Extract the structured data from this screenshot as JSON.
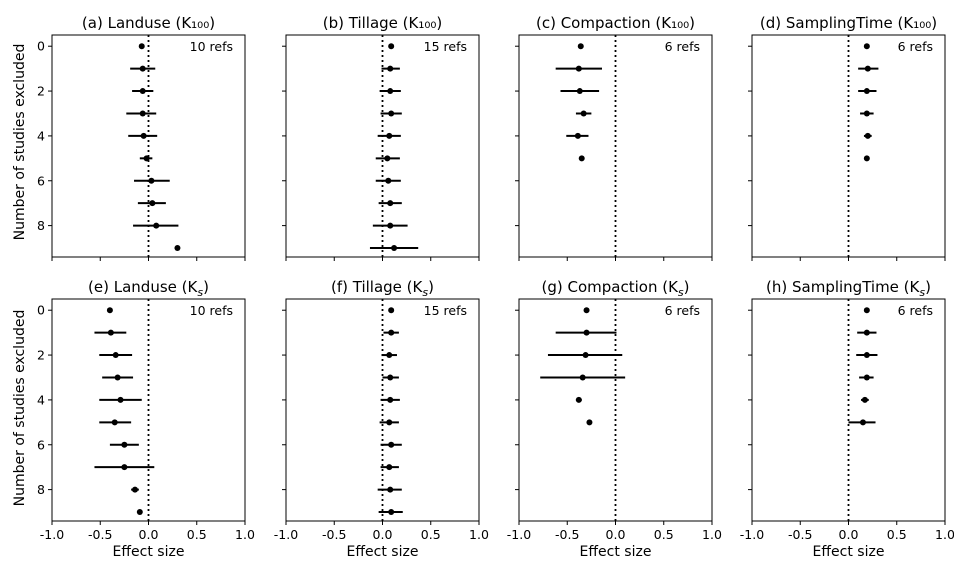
{
  "figure": {
    "ylabel": "Number of studies excluded",
    "xlabel": "Effect size"
  },
  "chart_data": [
    {
      "type": "scatter",
      "title": "(a) Landuse (K₁₀₀)",
      "refs_label": "10 refs",
      "xlim": [
        -1.0,
        1.0
      ],
      "ylim": [
        9.4,
        -0.5
      ],
      "xticks": [
        -1.0,
        -0.5,
        0.0,
        0.5,
        1.0
      ],
      "yticks": [
        0,
        2,
        4,
        6,
        8
      ],
      "reference_line": 0,
      "points": [
        {
          "y": 0,
          "x": -0.07,
          "lo": -0.07,
          "hi": -0.07
        },
        {
          "y": 1,
          "x": -0.06,
          "lo": -0.19,
          "hi": 0.07
        },
        {
          "y": 2,
          "x": -0.06,
          "lo": -0.17,
          "hi": 0.05
        },
        {
          "y": 3,
          "x": -0.06,
          "lo": -0.23,
          "hi": 0.08
        },
        {
          "y": 4,
          "x": -0.05,
          "lo": -0.21,
          "hi": 0.09
        },
        {
          "y": 5,
          "x": -0.02,
          "lo": -0.09,
          "hi": 0.04
        },
        {
          "y": 6,
          "x": 0.03,
          "lo": -0.15,
          "hi": 0.22
        },
        {
          "y": 7,
          "x": 0.04,
          "lo": -0.11,
          "hi": 0.18
        },
        {
          "y": 8,
          "x": 0.08,
          "lo": -0.16,
          "hi": 0.31
        },
        {
          "y": 9,
          "x": 0.3,
          "lo": 0.3,
          "hi": 0.3
        }
      ]
    },
    {
      "type": "scatter",
      "title": "(b) Tillage (K₁₀₀)",
      "refs_label": "15 refs",
      "xlim": [
        -1.0,
        1.0
      ],
      "ylim": [
        9.4,
        -0.5
      ],
      "xticks": [
        -1.0,
        -0.5,
        0.0,
        0.5,
        1.0
      ],
      "yticks": [
        0,
        2,
        4,
        6,
        8
      ],
      "reference_line": 0,
      "points": [
        {
          "y": 0,
          "x": 0.09,
          "lo": 0.09,
          "hi": 0.09
        },
        {
          "y": 1,
          "x": 0.08,
          "lo": -0.01,
          "hi": 0.18
        },
        {
          "y": 2,
          "x": 0.08,
          "lo": -0.03,
          "hi": 0.19
        },
        {
          "y": 3,
          "x": 0.09,
          "lo": -0.02,
          "hi": 0.2
        },
        {
          "y": 4,
          "x": 0.07,
          "lo": -0.05,
          "hi": 0.19
        },
        {
          "y": 5,
          "x": 0.05,
          "lo": -0.07,
          "hi": 0.18
        },
        {
          "y": 6,
          "x": 0.06,
          "lo": -0.07,
          "hi": 0.19
        },
        {
          "y": 7,
          "x": 0.08,
          "lo": -0.04,
          "hi": 0.2
        },
        {
          "y": 8,
          "x": 0.08,
          "lo": -0.1,
          "hi": 0.26
        },
        {
          "y": 9,
          "x": 0.12,
          "lo": -0.13,
          "hi": 0.37
        }
      ]
    },
    {
      "type": "scatter",
      "title": "(c) Compaction (K₁₀₀)",
      "refs_label": "6 refs",
      "xlim": [
        -1.0,
        1.0
      ],
      "ylim": [
        9.4,
        -0.5
      ],
      "xticks": [
        -1.0,
        -0.5,
        0.0,
        0.5,
        1.0
      ],
      "yticks": [
        0,
        2,
        4,
        6,
        8
      ],
      "reference_line": 0,
      "points": [
        {
          "y": 0,
          "x": -0.36,
          "lo": -0.36,
          "hi": -0.36
        },
        {
          "y": 1,
          "x": -0.38,
          "lo": -0.62,
          "hi": -0.14
        },
        {
          "y": 2,
          "x": -0.37,
          "lo": -0.57,
          "hi": -0.17
        },
        {
          "y": 3,
          "x": -0.33,
          "lo": -0.41,
          "hi": -0.25
        },
        {
          "y": 4,
          "x": -0.39,
          "lo": -0.51,
          "hi": -0.28
        },
        {
          "y": 5,
          "x": -0.35,
          "lo": -0.35,
          "hi": -0.35
        }
      ]
    },
    {
      "type": "scatter",
      "title": "(d) SamplingTime (K₁₀₀)",
      "refs_label": "6 refs",
      "xlim": [
        -1.0,
        1.0
      ],
      "ylim": [
        9.4,
        -0.5
      ],
      "xticks": [
        -1.0,
        -0.5,
        0.0,
        0.5,
        1.0
      ],
      "yticks": [
        0,
        2,
        4,
        6,
        8
      ],
      "reference_line": 0,
      "points": [
        {
          "y": 0,
          "x": 0.19,
          "lo": 0.19,
          "hi": 0.19
        },
        {
          "y": 1,
          "x": 0.2,
          "lo": 0.1,
          "hi": 0.31
        },
        {
          "y": 2,
          "x": 0.19,
          "lo": 0.1,
          "hi": 0.29
        },
        {
          "y": 3,
          "x": 0.19,
          "lo": 0.12,
          "hi": 0.26
        },
        {
          "y": 4,
          "x": 0.2,
          "lo": 0.16,
          "hi": 0.24
        },
        {
          "y": 5,
          "x": 0.19,
          "lo": 0.19,
          "hi": 0.19
        }
      ]
    },
    {
      "type": "scatter",
      "title": "(e) Landuse (K",
      "refs_label": "10 refs",
      "xlim": [
        -1.0,
        1.0
      ],
      "ylim": [
        9.4,
        -0.5
      ],
      "xticks": [
        -1.0,
        -0.5,
        0.0,
        0.5,
        1.0
      ],
      "yticks": [
        0,
        2,
        4,
        6,
        8
      ],
      "reference_line": 0,
      "points": [
        {
          "y": 0,
          "x": -0.4,
          "lo": -0.4,
          "hi": -0.4
        },
        {
          "y": 1,
          "x": -0.39,
          "lo": -0.56,
          "hi": -0.23
        },
        {
          "y": 2,
          "x": -0.34,
          "lo": -0.51,
          "hi": -0.17
        },
        {
          "y": 3,
          "x": -0.32,
          "lo": -0.48,
          "hi": -0.16
        },
        {
          "y": 4,
          "x": -0.29,
          "lo": -0.51,
          "hi": -0.07
        },
        {
          "y": 5,
          "x": -0.35,
          "lo": -0.51,
          "hi": -0.18
        },
        {
          "y": 6,
          "x": -0.25,
          "lo": -0.4,
          "hi": -0.1
        },
        {
          "y": 7,
          "x": -0.25,
          "lo": -0.56,
          "hi": 0.06
        },
        {
          "y": 8,
          "x": -0.14,
          "lo": -0.18,
          "hi": -0.1
        },
        {
          "y": 9,
          "x": -0.09,
          "lo": -0.09,
          "hi": -0.09
        }
      ]
    },
    {
      "type": "scatter",
      "title": "(f) Tillage (K",
      "refs_label": "15 refs",
      "xlim": [
        -1.0,
        1.0
      ],
      "ylim": [
        9.4,
        -0.5
      ],
      "xticks": [
        -1.0,
        -0.5,
        0.0,
        0.5,
        1.0
      ],
      "yticks": [
        0,
        2,
        4,
        6,
        8
      ],
      "reference_line": 0,
      "points": [
        {
          "y": 0,
          "x": 0.09,
          "lo": 0.09,
          "hi": 0.09
        },
        {
          "y": 1,
          "x": 0.09,
          "lo": 0.01,
          "hi": 0.17
        },
        {
          "y": 2,
          "x": 0.07,
          "lo": -0.01,
          "hi": 0.15
        },
        {
          "y": 3,
          "x": 0.08,
          "lo": 0.0,
          "hi": 0.17
        },
        {
          "y": 4,
          "x": 0.08,
          "lo": -0.02,
          "hi": 0.18
        },
        {
          "y": 5,
          "x": 0.07,
          "lo": -0.03,
          "hi": 0.17
        },
        {
          "y": 6,
          "x": 0.09,
          "lo": -0.02,
          "hi": 0.2
        },
        {
          "y": 7,
          "x": 0.07,
          "lo": -0.02,
          "hi": 0.17
        },
        {
          "y": 8,
          "x": 0.08,
          "lo": -0.05,
          "hi": 0.2
        },
        {
          "y": 9,
          "x": 0.09,
          "lo": -0.04,
          "hi": 0.21
        }
      ]
    },
    {
      "type": "scatter",
      "title": "(g) Compaction (K",
      "refs_label": "6 refs",
      "xlim": [
        -1.0,
        1.0
      ],
      "ylim": [
        9.4,
        -0.5
      ],
      "xticks": [
        -1.0,
        -0.5,
        0.0,
        0.5,
        1.0
      ],
      "yticks": [
        0,
        2,
        4,
        6,
        8
      ],
      "reference_line": 0,
      "points": [
        {
          "y": 0,
          "x": -0.3,
          "lo": -0.3,
          "hi": -0.3
        },
        {
          "y": 1,
          "x": -0.3,
          "lo": -0.62,
          "hi": 0.01
        },
        {
          "y": 2,
          "x": -0.31,
          "lo": -0.7,
          "hi": 0.07
        },
        {
          "y": 3,
          "x": -0.34,
          "lo": -0.78,
          "hi": 0.1
        },
        {
          "y": 4,
          "x": -0.38,
          "lo": -0.41,
          "hi": -0.35
        },
        {
          "y": 5,
          "x": -0.27,
          "lo": -0.27,
          "hi": -0.27
        }
      ]
    },
    {
      "type": "scatter",
      "title": "(h) SamplingTime (K",
      "refs_label": "6 refs",
      "xlim": [
        -1.0,
        1.0
      ],
      "ylim": [
        9.4,
        -0.5
      ],
      "xticks": [
        -1.0,
        -0.5,
        0.0,
        0.5,
        1.0
      ],
      "yticks": [
        0,
        2,
        4,
        6,
        8
      ],
      "reference_line": 0,
      "points": [
        {
          "y": 0,
          "x": 0.19,
          "lo": 0.19,
          "hi": 0.19
        },
        {
          "y": 1,
          "x": 0.19,
          "lo": 0.09,
          "hi": 0.29
        },
        {
          "y": 2,
          "x": 0.19,
          "lo": 0.08,
          "hi": 0.3
        },
        {
          "y": 3,
          "x": 0.19,
          "lo": 0.11,
          "hi": 0.26
        },
        {
          "y": 4,
          "x": 0.17,
          "lo": 0.13,
          "hi": 0.21
        },
        {
          "y": 5,
          "x": 0.15,
          "lo": 0.0,
          "hi": 0.28
        }
      ]
    }
  ]
}
